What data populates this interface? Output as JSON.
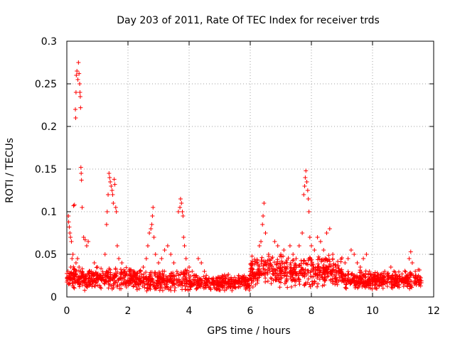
{
  "chart_data": {
    "type": "scatter",
    "title": "Day 203 of 2011, Rate Of TEC Index for receiver trds",
    "xlabel": "GPS time / hours",
    "ylabel": "ROTI / TECUs",
    "xlim": [
      0,
      12
    ],
    "ylim": [
      0,
      0.3
    ],
    "xticks": [
      0,
      2,
      4,
      6,
      8,
      10,
      12
    ],
    "xtick_labels": [
      "0",
      "2",
      "4",
      "6",
      "8",
      "10",
      "12"
    ],
    "yticks": [
      0,
      0.05,
      0.1,
      0.15,
      0.2,
      0.25,
      0.3
    ],
    "ytick_labels": [
      "0",
      "0.05",
      "0.1",
      "0.15",
      "0.2",
      "0.25",
      "0.3"
    ],
    "grid": true,
    "marker": "+",
    "color": "#ff0000",
    "series": [
      {
        "name": "ROTI",
        "points": [
          [
            0.05,
            0.095
          ],
          [
            0.06,
            0.088
          ],
          [
            0.08,
            0.082
          ],
          [
            0.1,
            0.075
          ],
          [
            0.12,
            0.07
          ],
          [
            0.15,
            0.065
          ],
          [
            0.04,
            0.03
          ],
          [
            0.07,
            0.025
          ],
          [
            0.1,
            0.02
          ],
          [
            0.13,
            0.035
          ],
          [
            0.17,
            0.045
          ],
          [
            0.2,
            0.05
          ],
          [
            0.22,
            0.107
          ],
          [
            0.25,
            0.108
          ],
          [
            0.28,
            0.22
          ],
          [
            0.29,
            0.21
          ],
          [
            0.3,
            0.24
          ],
          [
            0.31,
            0.26
          ],
          [
            0.33,
            0.265
          ],
          [
            0.36,
            0.255
          ],
          [
            0.38,
            0.275
          ],
          [
            0.4,
            0.262
          ],
          [
            0.42,
            0.25
          ],
          [
            0.43,
            0.24
          ],
          [
            0.44,
            0.235
          ],
          [
            0.45,
            0.222
          ],
          [
            0.46,
            0.152
          ],
          [
            0.47,
            0.145
          ],
          [
            0.48,
            0.137
          ],
          [
            0.5,
            0.105
          ],
          [
            0.55,
            0.07
          ],
          [
            0.6,
            0.067
          ],
          [
            0.65,
            0.06
          ],
          [
            0.7,
            0.065
          ],
          [
            0.3,
            0.04
          ],
          [
            0.35,
            0.045
          ],
          [
            0.4,
            0.035
          ],
          [
            0.5,
            0.03
          ],
          [
            0.6,
            0.025
          ],
          [
            0.7,
            0.02
          ],
          [
            0.8,
            0.03
          ],
          [
            0.9,
            0.04
          ],
          [
            1.0,
            0.035
          ],
          [
            1.1,
            0.025
          ],
          [
            1.2,
            0.02
          ],
          [
            1.25,
            0.05
          ],
          [
            1.3,
            0.085
          ],
          [
            1.32,
            0.1
          ],
          [
            1.35,
            0.12
          ],
          [
            1.38,
            0.145
          ],
          [
            1.4,
            0.14
          ],
          [
            1.42,
            0.135
          ],
          [
            1.45,
            0.13
          ],
          [
            1.48,
            0.125
          ],
          [
            1.5,
            0.12
          ],
          [
            1.52,
            0.11
          ],
          [
            1.55,
            0.138
          ],
          [
            1.57,
            0.132
          ],
          [
            1.6,
            0.105
          ],
          [
            1.62,
            0.1
          ],
          [
            1.65,
            0.06
          ],
          [
            1.7,
            0.045
          ],
          [
            1.8,
            0.04
          ],
          [
            1.9,
            0.03
          ],
          [
            2.0,
            0.025
          ],
          [
            2.1,
            0.02
          ],
          [
            2.2,
            0.03
          ],
          [
            2.3,
            0.025
          ],
          [
            2.4,
            0.02
          ],
          [
            2.5,
            0.035
          ],
          [
            2.6,
            0.045
          ],
          [
            2.65,
            0.06
          ],
          [
            2.7,
            0.075
          ],
          [
            2.75,
            0.08
          ],
          [
            2.78,
            0.085
          ],
          [
            2.8,
            0.095
          ],
          [
            2.82,
            0.105
          ],
          [
            2.85,
            0.07
          ],
          [
            2.9,
            0.05
          ],
          [
            3.0,
            0.04
          ],
          [
            3.1,
            0.045
          ],
          [
            3.2,
            0.055
          ],
          [
            3.3,
            0.06
          ],
          [
            3.4,
            0.05
          ],
          [
            3.5,
            0.04
          ],
          [
            3.6,
            0.03
          ],
          [
            3.65,
            0.1
          ],
          [
            3.7,
            0.105
          ],
          [
            3.72,
            0.115
          ],
          [
            3.75,
            0.11
          ],
          [
            3.78,
            0.1
          ],
          [
            3.8,
            0.095
          ],
          [
            3.82,
            0.07
          ],
          [
            3.85,
            0.06
          ],
          [
            3.9,
            0.045
          ],
          [
            4.0,
            0.035
          ],
          [
            4.1,
            0.03
          ],
          [
            4.2,
            0.025
          ],
          [
            4.3,
            0.045
          ],
          [
            4.4,
            0.04
          ],
          [
            4.5,
            0.03
          ],
          [
            4.6,
            0.02
          ],
          [
            4.8,
            0.015
          ],
          [
            5.0,
            0.015
          ],
          [
            5.2,
            0.018
          ],
          [
            5.4,
            0.02
          ],
          [
            5.6,
            0.022
          ],
          [
            5.8,
            0.025
          ],
          [
            6.0,
            0.03
          ],
          [
            6.2,
            0.028
          ],
          [
            6.3,
            0.06
          ],
          [
            6.35,
            0.065
          ],
          [
            6.4,
            0.085
          ],
          [
            6.42,
            0.095
          ],
          [
            6.45,
            0.11
          ],
          [
            6.5,
            0.075
          ],
          [
            6.6,
            0.05
          ],
          [
            6.7,
            0.045
          ],
          [
            6.8,
            0.065
          ],
          [
            6.9,
            0.06
          ],
          [
            7.0,
            0.05
          ],
          [
            7.1,
            0.055
          ],
          [
            7.2,
            0.04
          ],
          [
            7.3,
            0.06
          ],
          [
            7.4,
            0.05
          ],
          [
            7.5,
            0.045
          ],
          [
            7.6,
            0.06
          ],
          [
            7.7,
            0.075
          ],
          [
            7.75,
            0.12
          ],
          [
            7.78,
            0.13
          ],
          [
            7.8,
            0.14
          ],
          [
            7.82,
            0.148
          ],
          [
            7.85,
            0.135
          ],
          [
            7.88,
            0.125
          ],
          [
            7.9,
            0.115
          ],
          [
            7.92,
            0.1
          ],
          [
            7.95,
            0.07
          ],
          [
            8.0,
            0.06
          ],
          [
            8.1,
            0.055
          ],
          [
            8.2,
            0.07
          ],
          [
            8.3,
            0.065
          ],
          [
            8.4,
            0.055
          ],
          [
            8.5,
            0.075
          ],
          [
            8.6,
            0.08
          ],
          [
            8.7,
            0.05
          ],
          [
            8.8,
            0.035
          ],
          [
            8.9,
            0.03
          ],
          [
            9.0,
            0.025
          ],
          [
            9.1,
            0.04
          ],
          [
            9.2,
            0.045
          ],
          [
            9.3,
            0.055
          ],
          [
            9.4,
            0.05
          ],
          [
            9.5,
            0.04
          ],
          [
            9.6,
            0.035
          ],
          [
            9.7,
            0.045
          ],
          [
            9.8,
            0.05
          ],
          [
            9.9,
            0.03
          ],
          [
            10.0,
            0.02
          ],
          [
            10.1,
            0.015
          ],
          [
            10.2,
            0.02
          ],
          [
            10.3,
            0.025
          ],
          [
            10.4,
            0.03
          ],
          [
            10.5,
            0.028
          ],
          [
            10.6,
            0.035
          ],
          [
            10.7,
            0.03
          ],
          [
            10.8,
            0.025
          ],
          [
            10.9,
            0.02
          ],
          [
            11.0,
            0.022
          ],
          [
            11.1,
            0.025
          ],
          [
            11.2,
            0.045
          ],
          [
            11.25,
            0.053
          ],
          [
            11.3,
            0.04
          ],
          [
            11.4,
            0.03
          ],
          [
            11.5,
            0.025
          ],
          [
            11.55,
            0.02
          ]
        ],
        "baseline_band": {
          "description": "dense background cloud of ROTI values across the full day",
          "segments": [
            {
              "x": [
                0,
                2
              ],
              "y_center": 0.022,
              "y_spread": 0.015
            },
            {
              "x": [
                2,
                4
              ],
              "y_center": 0.02,
              "y_spread": 0.014
            },
            {
              "x": [
                4,
                6
              ],
              "y_center": 0.017,
              "y_spread": 0.01
            },
            {
              "x": [
                6,
                9
              ],
              "y_center": 0.03,
              "y_spread": 0.02
            },
            {
              "x": [
                9,
                11.6
              ],
              "y_center": 0.02,
              "y_spread": 0.012
            }
          ]
        }
      }
    ]
  }
}
